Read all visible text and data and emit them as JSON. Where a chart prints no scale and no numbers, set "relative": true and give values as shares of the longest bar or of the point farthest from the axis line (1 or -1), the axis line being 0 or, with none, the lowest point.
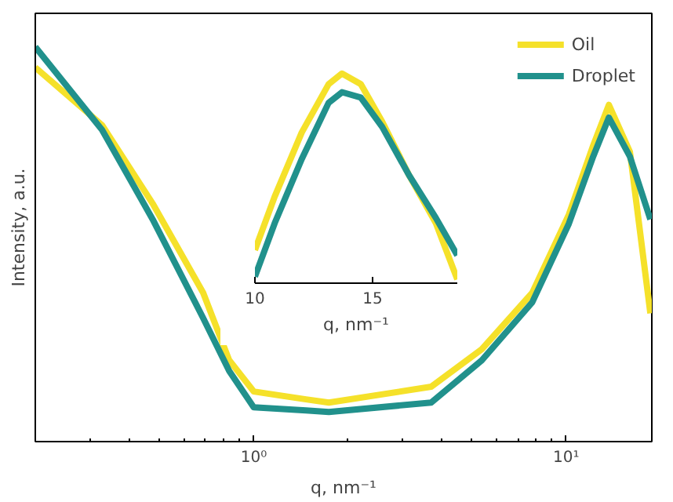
{
  "chart_data": [
    {
      "type": "line",
      "log": "x",
      "relative": true,
      "xlabel": "q, nm⁻¹",
      "ylabel": "Intensity, a.u.",
      "xlim": [
        0.2,
        18.8
      ],
      "xticks": [
        {
          "value": 1,
          "label": "10⁰"
        },
        {
          "value": 10,
          "label": "10¹"
        }
      ],
      "legend": "top right",
      "grid": false,
      "series": [
        {
          "name": "Oil",
          "color": "#f5e12a",
          "x": [
            0.2,
            0.327,
            0.475,
            0.689,
            0.835,
            1.0,
            1.47,
            1.74,
            3.7,
            5.37,
            7.79,
            10.2,
            12.2,
            13.7,
            16.0,
            18.6
          ],
          "values": [
            0.948,
            0.802,
            0.603,
            0.377,
            0.206,
            0.127,
            0.107,
            0.099,
            0.139,
            0.234,
            0.377,
            0.575,
            0.75,
            0.853,
            0.734,
            0.325
          ]
        },
        {
          "name": "Droplet",
          "color": "#21918c",
          "x": [
            0.2,
            0.327,
            0.475,
            0.689,
            0.835,
            1.0,
            1.47,
            1.74,
            3.7,
            5.37,
            7.79,
            10.2,
            12.2,
            13.7,
            16.0,
            18.6
          ],
          "values": [
            1.0,
            0.79,
            0.563,
            0.313,
            0.179,
            0.087,
            0.079,
            0.075,
            0.099,
            0.206,
            0.353,
            0.552,
            0.722,
            0.821,
            0.722,
            0.563
          ]
        }
      ]
    },
    {
      "type": "line",
      "relative": true,
      "xlabel": "q, nm⁻¹",
      "xlim": [
        10,
        18.6
      ],
      "xticks": [
        10,
        15
      ],
      "series": [
        {
          "color": "#f5e12a",
          "x": [
            10.0,
            10.84,
            11.99,
            13.13,
            13.7,
            14.5,
            15.41,
            16.55,
            17.69,
            18.6
          ],
          "values": [
            0.158,
            0.413,
            0.719,
            0.949,
            1.0,
            0.949,
            0.77,
            0.515,
            0.286,
            0.018
          ]
        },
        {
          "color": "#21918c",
          "x": [
            10.0,
            10.84,
            11.99,
            13.13,
            13.7,
            14.5,
            15.41,
            16.55,
            17.69,
            18.6
          ],
          "values": [
            0.031,
            0.286,
            0.592,
            0.86,
            0.911,
            0.885,
            0.745,
            0.515,
            0.311,
            0.133
          ]
        }
      ]
    }
  ]
}
